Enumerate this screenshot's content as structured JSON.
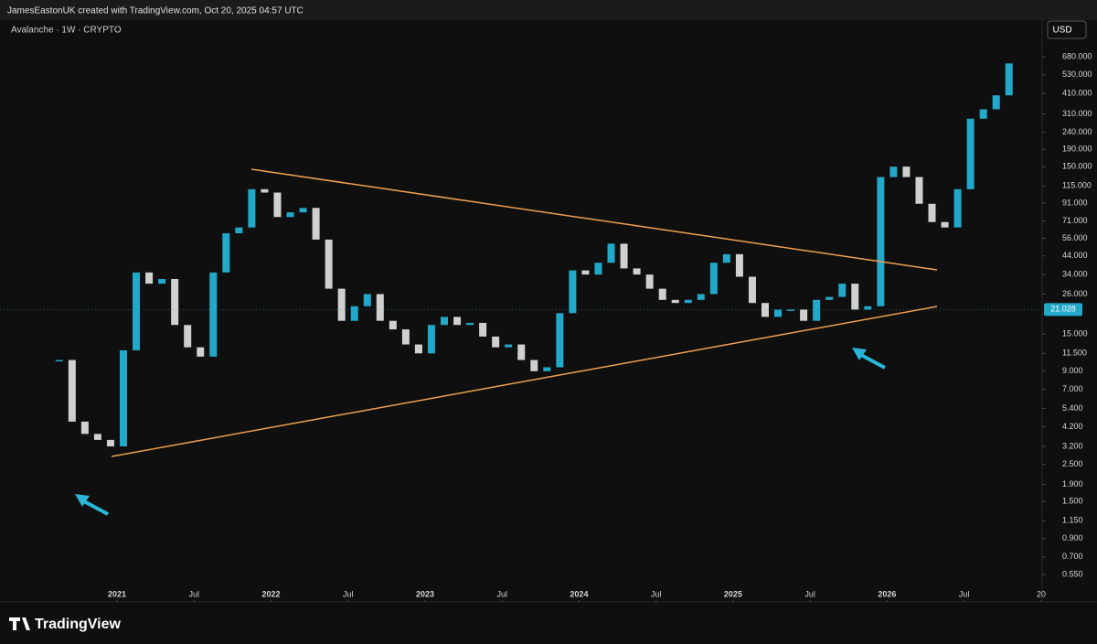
{
  "header": "JamesEastonUK created with TradingView.com, Oct 20, 2025 04:57 UTC",
  "footer": {
    "brand": "TradingView"
  },
  "chart_data": {
    "type": "candlestick",
    "title": "Avalanche · 1W · CRYPTO",
    "currency": "USD",
    "log": true,
    "up_color": "#22a9c9",
    "down_color": "#d0d0d0",
    "x": [
      "2020-08",
      "2020-09",
      "2020-10",
      "2020-11",
      "2020-12",
      "2021-01",
      "2021-02",
      "2021-03",
      "2021-04",
      "2021-05",
      "2021-06",
      "2021-07",
      "2021-08",
      "2021-09",
      "2021-10",
      "2021-11",
      "2021-12",
      "2022-01",
      "2022-02",
      "2022-03",
      "2022-04",
      "2022-05",
      "2022-06",
      "2022-07",
      "2022-08",
      "2022-09",
      "2022-10",
      "2022-11",
      "2022-12",
      "2023-01",
      "2023-02",
      "2023-03",
      "2023-04",
      "2023-05",
      "2023-06",
      "2023-07",
      "2023-08",
      "2023-09",
      "2023-10",
      "2023-11",
      "2023-12",
      "2024-01",
      "2024-02",
      "2024-03",
      "2024-04",
      "2024-05",
      "2024-06",
      "2024-07",
      "2024-08",
      "2024-09",
      "2024-10",
      "2024-11",
      "2024-12",
      "2025-01",
      "2025-02",
      "2025-03",
      "2025-04",
      "2025-05",
      "2025-06",
      "2025-07",
      "2025-08",
      "2025-09",
      "2025-10",
      "2025-11",
      "2025-12",
      "2026-01",
      "2026-02",
      "2026-03",
      "2026-04",
      "2026-05",
      "2026-06",
      "2026-07",
      "2026-08",
      "2026-09",
      "2026-10"
    ],
    "close": [
      10.5,
      4.5,
      3.8,
      3.5,
      3.2,
      12,
      35,
      30,
      32,
      17,
      12.5,
      11,
      35,
      60,
      65,
      110,
      105,
      75,
      80,
      85,
      55,
      28,
      18,
      22,
      26,
      18,
      16,
      13,
      11.5,
      17,
      19,
      17,
      17.5,
      14.5,
      12.5,
      13,
      10.5,
      9,
      9.5,
      20,
      36,
      34,
      40,
      52,
      37,
      34,
      28,
      24,
      23,
      24,
      26,
      40,
      45,
      33,
      23,
      19,
      21,
      21,
      18,
      24,
      25,
      30,
      21,
      22,
      130,
      150,
      130,
      90,
      70,
      65,
      110,
      290,
      330,
      400,
      620
    ],
    "ylim": [
      0.377,
      897
    ],
    "yticks": [
      {
        "value": 680,
        "label": "680.000"
      },
      {
        "value": 530,
        "label": "530.000"
      },
      {
        "value": 410,
        "label": "410.000"
      },
      {
        "value": 310,
        "label": "310.000"
      },
      {
        "value": 240,
        "label": "240.000"
      },
      {
        "value": 190,
        "label": "190.000"
      },
      {
        "value": 150,
        "label": "150.000"
      },
      {
        "value": 115,
        "label": "115.000"
      },
      {
        "value": 91,
        "label": "91.000"
      },
      {
        "value": 71,
        "label": "71.000"
      },
      {
        "value": 56,
        "label": "56.000"
      },
      {
        "value": 44,
        "label": "44.000"
      },
      {
        "value": 34,
        "label": "34.000"
      },
      {
        "value": 26,
        "label": "26.000"
      },
      {
        "value": 15,
        "label": "15.000"
      },
      {
        "value": 11.5,
        "label": "11.500"
      },
      {
        "value": 9,
        "label": "9.000"
      },
      {
        "value": 7,
        "label": "7.000"
      },
      {
        "value": 5.4,
        "label": "5.400"
      },
      {
        "value": 4.2,
        "label": "4.200"
      },
      {
        "value": 3.2,
        "label": "3.200"
      },
      {
        "value": 2.5,
        "label": "2.500"
      },
      {
        "value": 1.9,
        "label": "1.900"
      },
      {
        "value": 1.5,
        "label": "1.500"
      },
      {
        "value": 1.15,
        "label": "1.150"
      },
      {
        "value": 0.9,
        "label": "0.900"
      },
      {
        "value": 0.7,
        "label": "0.700"
      },
      {
        "value": 0.55,
        "label": "0.550"
      }
    ],
    "price_marker": 21.028,
    "xticks": [
      {
        "value": "2021-01",
        "label": "2021"
      },
      {
        "value": "2021-07",
        "label": "Jul"
      },
      {
        "value": "2022-01",
        "label": "2022"
      },
      {
        "value": "2022-07",
        "label": "Jul"
      },
      {
        "value": "2023-01",
        "label": "2023"
      },
      {
        "value": "2023-07",
        "label": "Jul"
      },
      {
        "value": "2024-01",
        "label": "2024"
      },
      {
        "value": "2024-07",
        "label": "Jul"
      },
      {
        "value": "2025-01",
        "label": "2025"
      },
      {
        "value": "2025-07",
        "label": "Jul"
      },
      {
        "value": "2026-01",
        "label": "2026"
      },
      {
        "value": "2026-07",
        "label": "Jul"
      },
      {
        "value": "2027-01",
        "label": "20"
      }
    ]
  }
}
